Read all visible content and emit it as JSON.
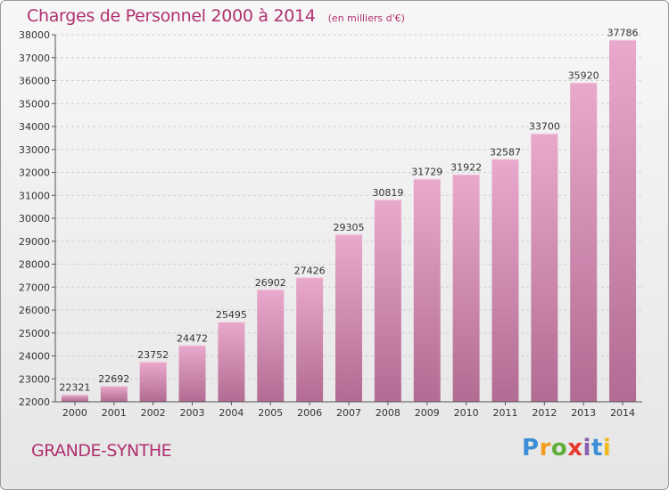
{
  "header": {
    "title": "Charges de Personnel 2000 à 2014",
    "subtitle": "(en milliers d'€)"
  },
  "footer": {
    "commune": "GRANDE-SYNTHE",
    "logo_text": [
      "P",
      "r",
      "o",
      "x",
      "i",
      "t",
      "i"
    ]
  },
  "colors": {
    "title": "#b0306f",
    "bar_top": "#e9a9cc",
    "bar_bottom": "#b26b92",
    "grid": "#d0d0d0"
  },
  "chart_data": {
    "type": "bar",
    "title": "Charges de Personnel 2000 à 2014",
    "subtitle": "(en milliers d'€)",
    "xlabel": "",
    "ylabel": "",
    "categories": [
      "2000",
      "2001",
      "2002",
      "2003",
      "2004",
      "2005",
      "2006",
      "2007",
      "2008",
      "2009",
      "2010",
      "2011",
      "2012",
      "2013",
      "2014"
    ],
    "values": [
      22321,
      22692,
      23752,
      24472,
      25495,
      26902,
      27426,
      29305,
      30819,
      31729,
      31922,
      32587,
      33700,
      35920,
      37786
    ],
    "ylim": [
      22000,
      38000
    ],
    "yticks": [
      22000,
      23000,
      24000,
      25000,
      26000,
      27000,
      28000,
      29000,
      30000,
      31000,
      32000,
      33000,
      34000,
      35000,
      36000,
      37000,
      38000
    ],
    "grid": true,
    "data_labels": true
  }
}
